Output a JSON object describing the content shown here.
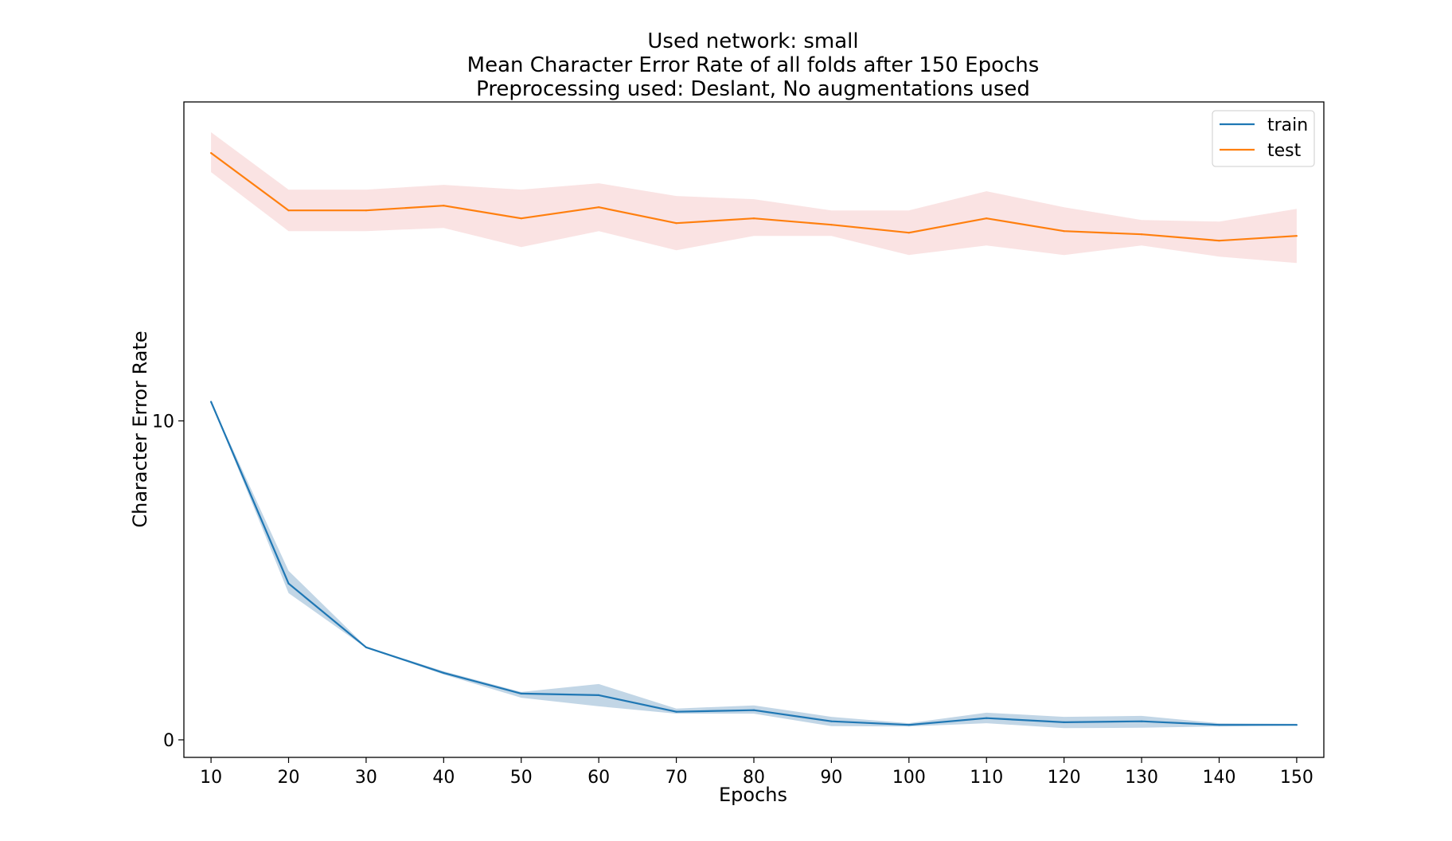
{
  "chart_data": {
    "type": "line",
    "title": [
      "Used network: small",
      "Mean Character Error Rate of all folds after 150 Epochs",
      "Preprocessing used: Deslant, No augmentations used"
    ],
    "xlabel": "Epochs",
    "ylabel": "Character Error Rate",
    "x": [
      10,
      20,
      30,
      40,
      50,
      60,
      70,
      80,
      90,
      100,
      110,
      120,
      130,
      140,
      150
    ],
    "x_ticks": [
      "10",
      "20",
      "30",
      "40",
      "50",
      "60",
      "70",
      "80",
      "90",
      "100",
      "110",
      "120",
      "130",
      "140",
      "150"
    ],
    "y_ticks": [
      0,
      10
    ],
    "y_tick_labels": [
      "0",
      "10"
    ],
    "xlim": [
      6.5,
      153.5
    ],
    "ylim": [
      -0.55,
      20.0
    ],
    "grid": false,
    "legend_position": "top-right",
    "series": [
      {
        "name": "train",
        "color": "#1f77b4",
        "band_color": "#a8c4dc",
        "values": [
          10.6,
          4.9,
          2.9,
          2.1,
          1.45,
          1.4,
          0.88,
          0.93,
          0.58,
          0.47,
          0.68,
          0.55,
          0.58,
          0.47,
          0.47
        ],
        "lower": [
          10.6,
          4.6,
          2.88,
          2.05,
          1.32,
          1.05,
          0.82,
          0.82,
          0.43,
          0.42,
          0.52,
          0.37,
          0.38,
          0.42,
          0.45
        ],
        "upper": [
          10.6,
          5.3,
          2.92,
          2.15,
          1.5,
          1.75,
          0.98,
          1.08,
          0.72,
          0.52,
          0.85,
          0.72,
          0.75,
          0.52,
          0.5
        ]
      },
      {
        "name": "test",
        "color": "#ff7f0e",
        "band_color": "#f4c2c2",
        "values": [
          18.4,
          16.6,
          16.6,
          16.75,
          16.35,
          16.7,
          16.2,
          16.35,
          16.15,
          15.9,
          16.35,
          15.95,
          15.85,
          15.65,
          15.8
        ],
        "lower": [
          17.8,
          15.95,
          15.95,
          16.05,
          15.45,
          15.95,
          15.35,
          15.8,
          15.8,
          15.2,
          15.5,
          15.2,
          15.5,
          15.15,
          14.95
        ],
        "upper": [
          19.05,
          17.25,
          17.25,
          17.4,
          17.25,
          17.45,
          17.05,
          16.95,
          16.6,
          16.6,
          17.2,
          16.7,
          16.3,
          16.25,
          16.65
        ]
      }
    ]
  }
}
